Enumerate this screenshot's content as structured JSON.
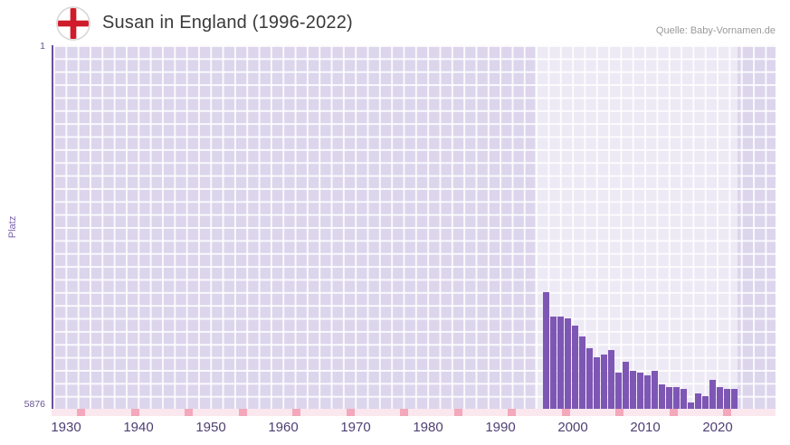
{
  "header": {
    "title": "Susan in England (1996-2022)",
    "source": "Quelle: Baby-Vornamen.de",
    "flag_icon": "england-flag-icon"
  },
  "chart_data": {
    "type": "bar",
    "title": "Susan in England (1996-2022)",
    "xlabel": "",
    "ylabel": "Platz",
    "y_axis": {
      "top_label": "1",
      "bottom_label": "5876"
    },
    "ylim": [
      1,
      5876
    ],
    "y_inverted": true,
    "x_domain": [
      1928,
      2028
    ],
    "x_ticks": [
      1930,
      1940,
      1950,
      1960,
      1970,
      1980,
      1990,
      2000,
      2010,
      2020
    ],
    "highlight_span": [
      1994.5,
      2022.5
    ],
    "grid": true,
    "legend": false,
    "years": [
      1996,
      1997,
      1998,
      1999,
      2000,
      2001,
      2002,
      2003,
      2004,
      2005,
      2006,
      2007,
      2008,
      2009,
      2010,
      2011,
      2012,
      2013,
      2014,
      2015,
      2016,
      2017,
      2018,
      2019,
      2020,
      2021,
      2022
    ],
    "ranks": [
      3990,
      4380,
      4390,
      4410,
      4530,
      4700,
      4890,
      5040,
      5000,
      4930,
      5290,
      5120,
      5260,
      5290,
      5330,
      5260,
      5480,
      5520,
      5520,
      5550,
      5770,
      5630,
      5670,
      5410,
      5520,
      5550,
      5550
    ],
    "colors": {
      "bar": "#7e57b4",
      "plot_background": "#dcd5ec",
      "axis": "#6b4f9e",
      "tick_mark": "#f3a8bb",
      "flag_cross": "#cf1b2b"
    }
  }
}
